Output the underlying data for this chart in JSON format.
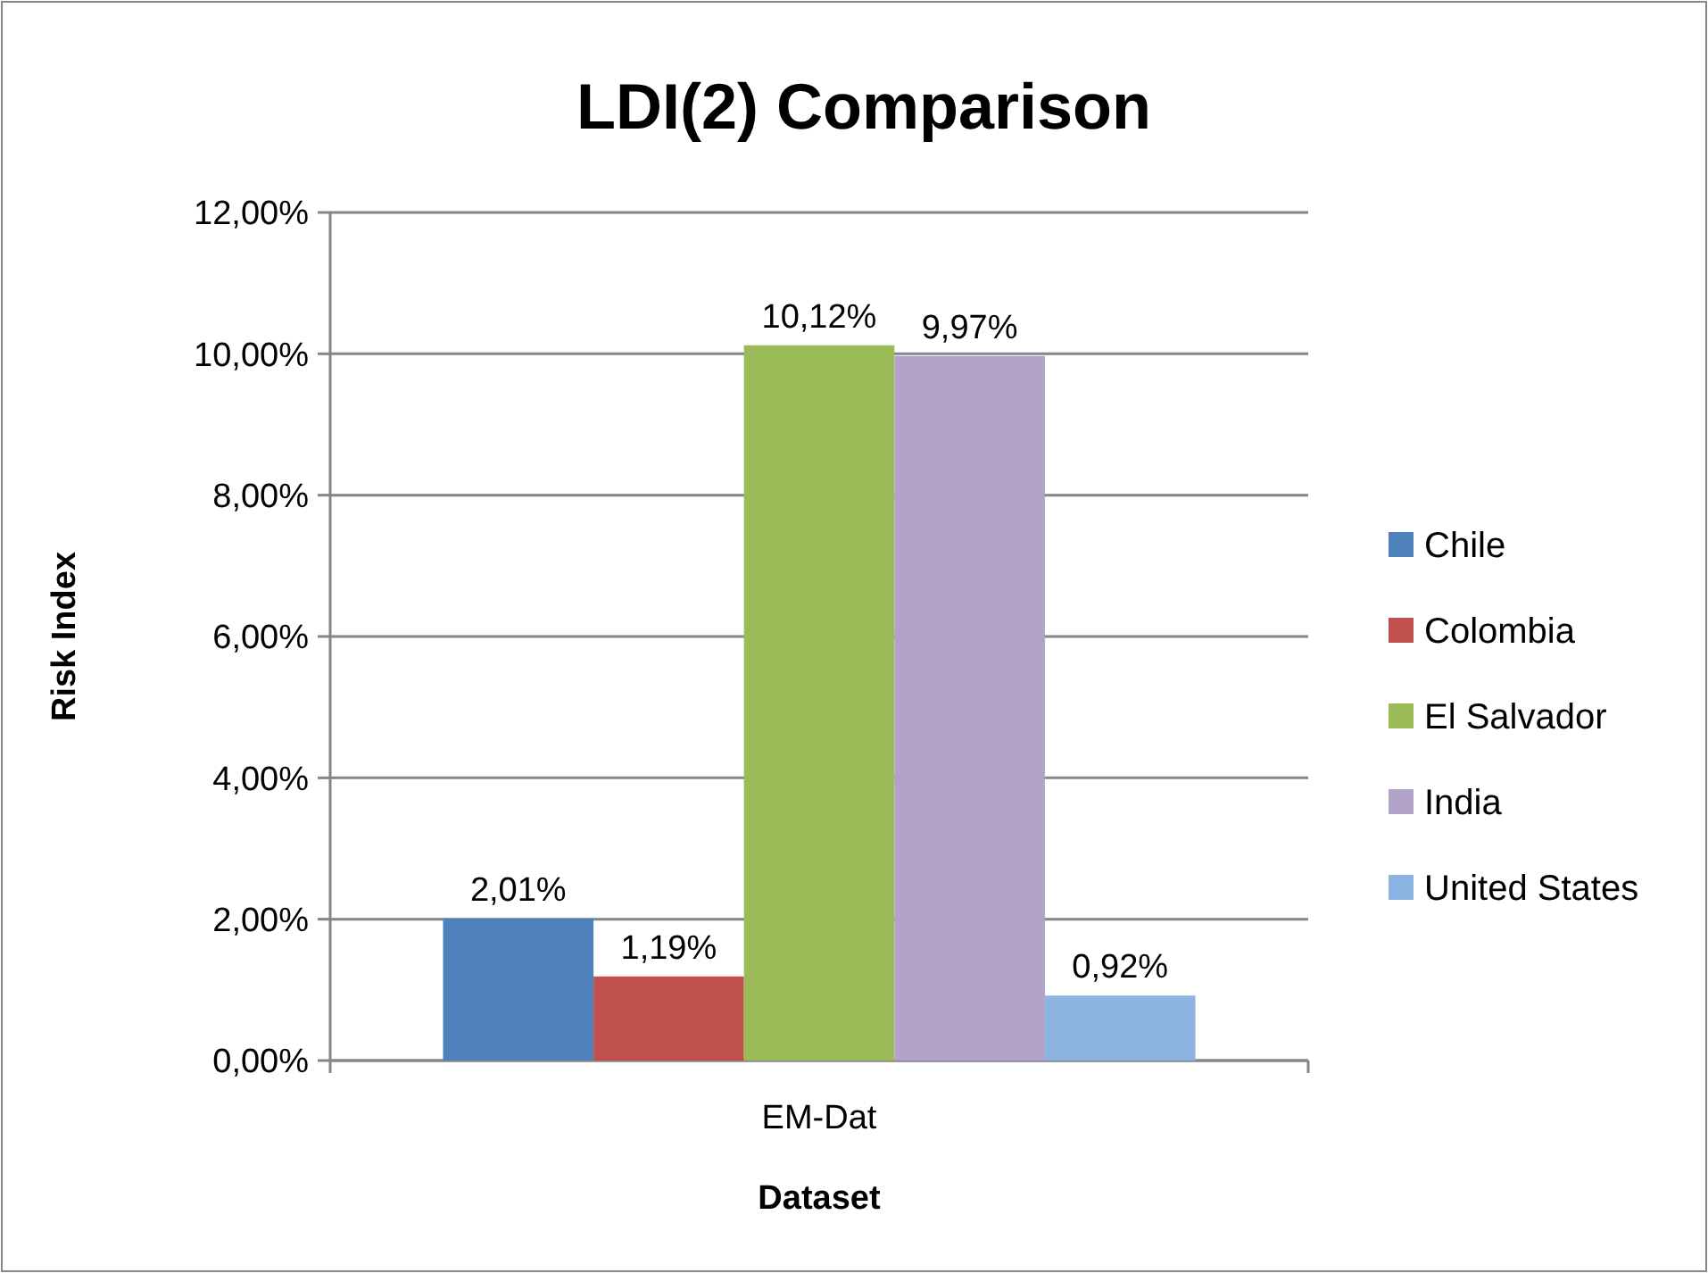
{
  "chart_data": {
    "type": "bar",
    "title": "LDI(2) Comparison",
    "xlabel": "Dataset",
    "ylabel": "Risk Index",
    "categories": [
      "EM-Dat"
    ],
    "series": [
      {
        "name": "Chile",
        "color": "#4f81bd",
        "values": [
          2.01
        ],
        "value_labels": [
          "2,01%"
        ]
      },
      {
        "name": "Colombia",
        "color": "#c0504d",
        "values": [
          1.19
        ],
        "value_labels": [
          "1,19%"
        ]
      },
      {
        "name": "El Salvador",
        "color": "#9bbb59",
        "values": [
          10.12
        ],
        "value_labels": [
          "10,12%"
        ]
      },
      {
        "name": "India",
        "color": "#b3a2c7",
        "values": [
          9.97
        ],
        "value_labels": [
          "9,97%"
        ]
      },
      {
        "name": "United States",
        "color": "#8eb4e3",
        "values": [
          0.92
        ],
        "value_labels": [
          "0,92%"
        ]
      }
    ],
    "ylim": [
      0,
      12
    ],
    "yticks": [
      {
        "value": 0,
        "label": "0,00%"
      },
      {
        "value": 2,
        "label": "2,00%"
      },
      {
        "value": 4,
        "label": "4,00%"
      },
      {
        "value": 6,
        "label": "6,00%"
      },
      {
        "value": 8,
        "label": "8,00%"
      },
      {
        "value": 10,
        "label": "10,00%"
      },
      {
        "value": 12,
        "label": "12,00%"
      }
    ],
    "grid": "y",
    "legend": "right"
  }
}
